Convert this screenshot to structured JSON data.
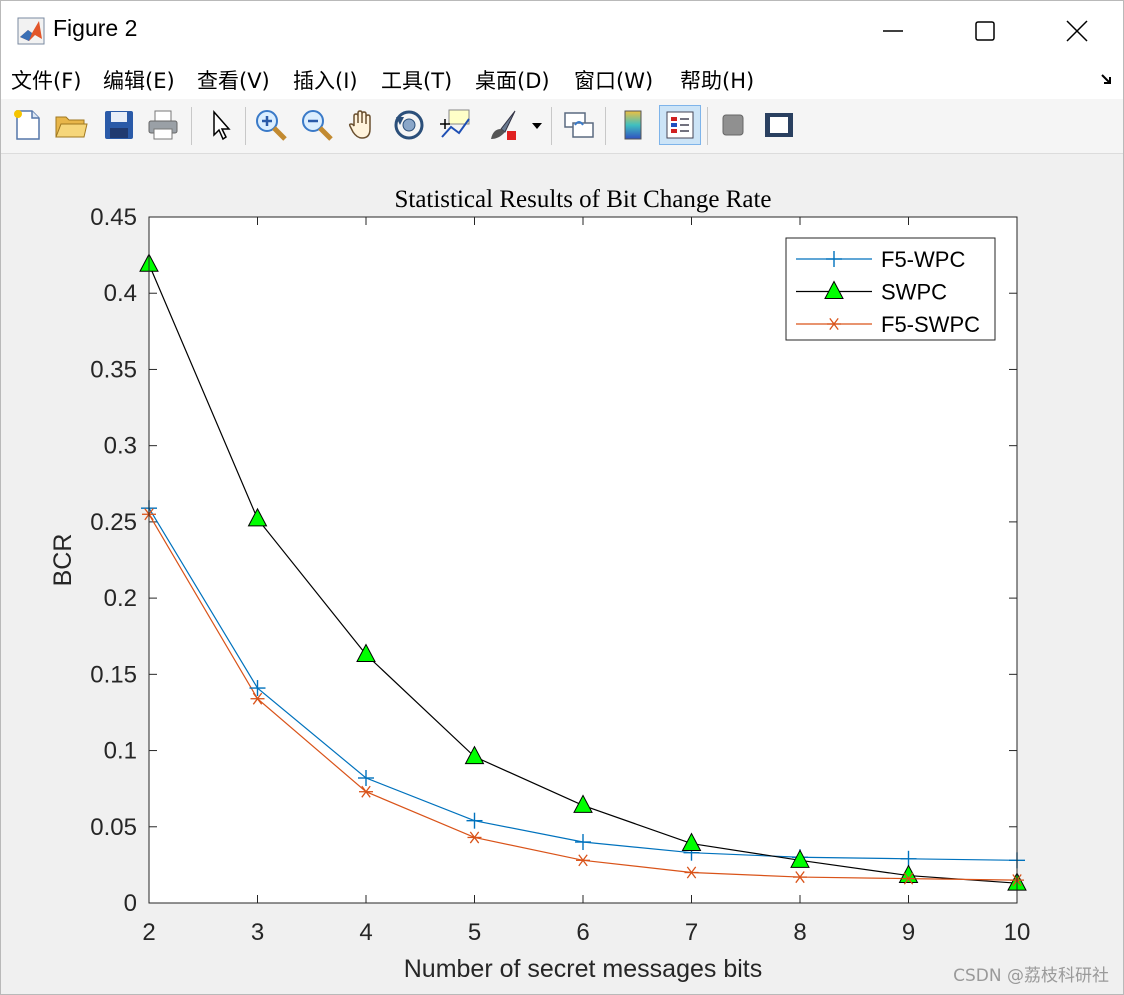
{
  "window": {
    "title": "Figure 2"
  },
  "menu": {
    "items": [
      "文件(F)",
      "编辑(E)",
      "查看(V)",
      "插入(I)",
      "工具(T)",
      "桌面(D)",
      "窗口(W)",
      "帮助(H)"
    ]
  },
  "toolbar": {
    "icons": [
      "new-figure-icon",
      "open-file-icon",
      "save-icon",
      "print-icon",
      "pointer-icon",
      "zoom-in-icon",
      "zoom-out-icon",
      "pan-hand-icon",
      "rotate-3d-icon",
      "data-cursor-icon",
      "brush-icon",
      "link-plot-icon",
      "colorbar-icon",
      "legend-icon",
      "hide-plot-tools-icon",
      "show-plot-tools-icon"
    ],
    "active": "legend-icon"
  },
  "chart_data": {
    "type": "line",
    "title": "Statistical Results of Bit Change Rate",
    "xlabel": "Number of secret messages bits",
    "ylabel": "BCR",
    "xlim": [
      2,
      10
    ],
    "ylim": [
      0,
      0.45
    ],
    "xticks": [
      2,
      3,
      4,
      5,
      6,
      7,
      8,
      9,
      10
    ],
    "yticks": [
      "0",
      "0.05",
      "0.1",
      "0.15",
      "0.2",
      "0.25",
      "0.3",
      "0.35",
      "0.4",
      "0.45"
    ],
    "ytick_values": [
      0,
      0.05,
      0.1,
      0.15,
      0.2,
      0.25,
      0.3,
      0.35,
      0.4,
      0.45
    ],
    "x": [
      2,
      3,
      4,
      5,
      6,
      7,
      8,
      9,
      10
    ],
    "legend_position": "top-right",
    "grid": false,
    "series": [
      {
        "name": "F5-WPC",
        "values": [
          0.259,
          0.141,
          0.082,
          0.054,
          0.04,
          0.033,
          0.03,
          0.029,
          0.028
        ],
        "color": "#0072bd",
        "marker": "plus"
      },
      {
        "name": "SWPC",
        "values": [
          0.419,
          0.252,
          0.163,
          0.096,
          0.064,
          0.039,
          0.028,
          0.018,
          0.013
        ],
        "color": "#000000",
        "marker": "triangle",
        "marker_fill": "#00ff00"
      },
      {
        "name": "F5-SWPC",
        "values": [
          0.255,
          0.134,
          0.073,
          0.043,
          0.028,
          0.02,
          0.017,
          0.016,
          0.015
        ],
        "color": "#d95319",
        "marker": "asterisk"
      }
    ]
  },
  "watermark": "CSDN @荔枝科研社"
}
